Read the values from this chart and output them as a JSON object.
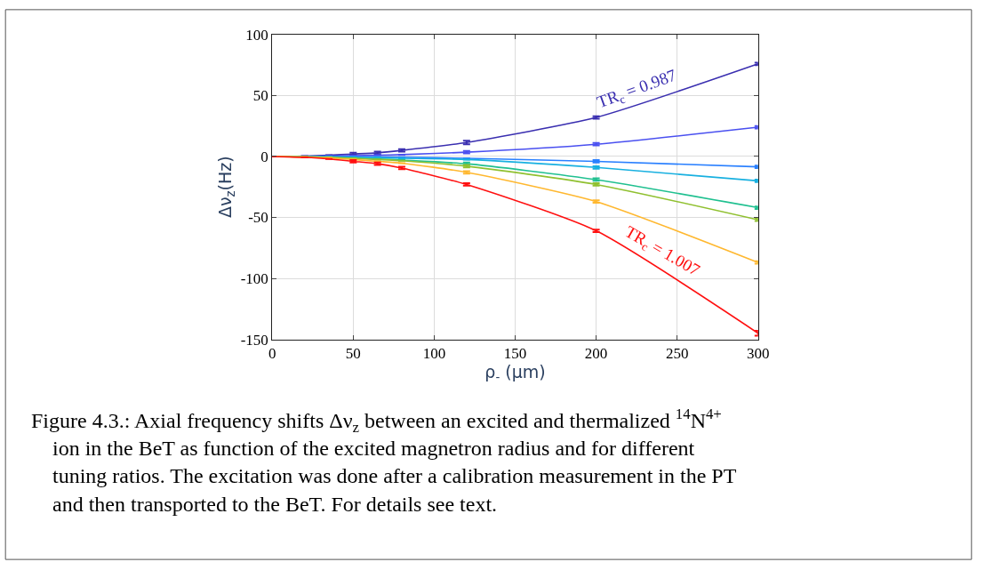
{
  "chart_data": {
    "type": "line",
    "xlabel": "ρ$_{-}$ (μm)",
    "ylabel": "Δν$_{z}$(Hz)",
    "x": [
      0,
      20,
      35,
      50,
      65,
      80,
      120,
      200,
      300
    ],
    "xlim": [
      0,
      300
    ],
    "xticks": [
      0,
      50,
      100,
      150,
      200,
      250,
      300
    ],
    "ylim": [
      -150,
      100
    ],
    "yticks": [
      -150,
      -100,
      -50,
      0,
      50,
      100
    ],
    "grid": true,
    "marker": "none",
    "line_style": "solid",
    "series": [
      {
        "color": "#3a2fb0",
        "values": [
          0,
          0.3,
          1,
          2,
          3,
          5,
          11.5,
          32,
          76
        ],
        "errors": [
          null,
          null,
          null,
          1,
          1,
          1,
          1.5,
          1,
          1
        ]
      },
      {
        "color": "#4a50f0",
        "values": [
          0,
          0.1,
          0.3,
          0.6,
          1,
          1.5,
          3.5,
          10,
          24
        ],
        "errors": [
          null,
          null,
          null,
          null,
          null,
          null,
          1,
          1,
          1
        ]
      },
      {
        "color": "#2a80ff",
        "values": [
          0,
          0,
          -0.1,
          -0.3,
          -0.4,
          -0.6,
          -1.5,
          -4,
          -8.5
        ],
        "errors": [
          null,
          null,
          null,
          null,
          null,
          null,
          null,
          1,
          1
        ]
      },
      {
        "color": "#18b0e0",
        "values": [
          0,
          -0.1,
          -0.3,
          -0.6,
          -1,
          -1.5,
          -2.5,
          -9,
          -20
        ],
        "errors": [
          null,
          null,
          null,
          null,
          null,
          null,
          null,
          1,
          1
        ]
      },
      {
        "color": "#20c090",
        "values": [
          0,
          -0.2,
          -0.6,
          -1.3,
          -2,
          -3,
          -6,
          -19,
          -42
        ],
        "errors": [
          null,
          null,
          null,
          null,
          null,
          null,
          1,
          1,
          1
        ]
      },
      {
        "color": "#90c030",
        "values": [
          0,
          -0.3,
          -0.8,
          -1.5,
          -2.5,
          -3.5,
          -8,
          -23,
          -52
        ],
        "errors": [
          null,
          null,
          null,
          null,
          null,
          null,
          1,
          1,
          1
        ]
      },
      {
        "color": "#ffb830",
        "values": [
          0,
          -0.5,
          -1.2,
          -2.5,
          -4,
          -5.5,
          -13,
          -37,
          -87
        ],
        "errors": [
          null,
          null,
          null,
          null,
          null,
          null,
          1,
          1,
          1
        ]
      },
      {
        "color": "#ff1010",
        "values": [
          0,
          -0.8,
          -2,
          -4,
          -6,
          -9.5,
          -23,
          -61,
          -145
        ],
        "errors": [
          null,
          null,
          null,
          1,
          1,
          1,
          1,
          1,
          2
        ]
      }
    ],
    "annotations": [
      {
        "text": "TR$_{c}$ = 0.987",
        "x": 225,
        "y": 43
      },
      {
        "text": "TR$_{c}$ = 1.007",
        "x": 235,
        "y": -84
      },
      "Figure 4.3.: Axial frequency shifts Δν$_{z}$ between an excited and thermalized $^{14}$N$^{4+}$ ion in the BeT as function of the excited magnetron radius and for different tuning ratios. The excitation was done after a calibration measurement in the PT and then transported to the BeT. For details see text."
    ]
  }
}
